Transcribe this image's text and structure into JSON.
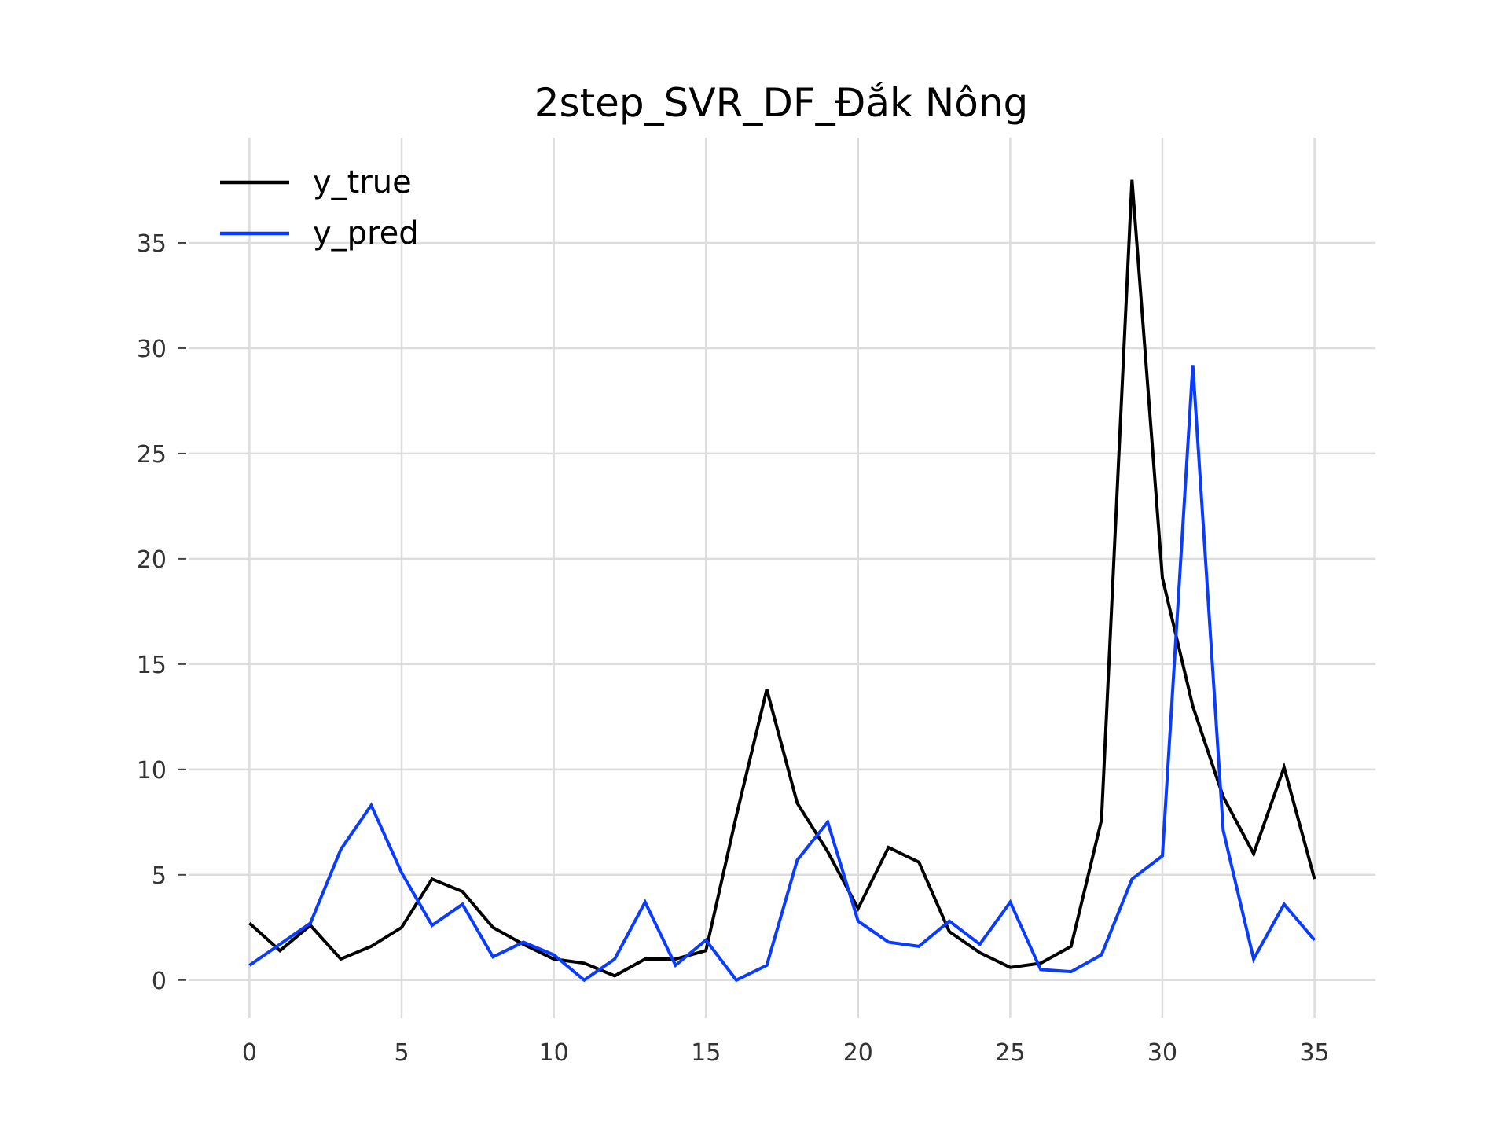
{
  "chart_data": {
    "type": "line",
    "title": "2step_SVR_DF_Đắk Nông",
    "xlabel": "",
    "ylabel": "",
    "x": [
      0,
      1,
      2,
      3,
      4,
      5,
      6,
      7,
      8,
      9,
      10,
      11,
      12,
      13,
      14,
      15,
      16,
      17,
      18,
      19,
      20,
      21,
      22,
      23,
      24,
      25,
      26,
      27,
      28,
      29,
      30,
      31,
      32,
      33,
      34,
      35
    ],
    "xlim": [
      -2,
      37
    ],
    "ylim": [
      -1.8,
      40
    ],
    "xticks": [
      0,
      5,
      10,
      15,
      20,
      25,
      30,
      35
    ],
    "yticks": [
      0,
      5,
      10,
      15,
      20,
      25,
      30,
      35
    ],
    "xtick_labels": [
      "0",
      "5",
      "10",
      "15",
      "20",
      "25",
      "30",
      "35"
    ],
    "ytick_labels": [
      "0",
      "5",
      "10",
      "15",
      "20",
      "25",
      "30",
      "35"
    ],
    "grid": true,
    "legend_position": "top-left",
    "series": [
      {
        "name": "y_true",
        "color": "#000000",
        "values": [
          2.7,
          1.4,
          2.6,
          1.0,
          1.6,
          2.5,
          4.8,
          4.2,
          2.5,
          1.7,
          1.0,
          0.8,
          0.2,
          1.0,
          1.0,
          1.4,
          7.8,
          13.8,
          8.4,
          6.1,
          3.4,
          6.3,
          5.6,
          2.3,
          1.3,
          0.6,
          0.8,
          1.6,
          7.6,
          38.0,
          19.1,
          13.0,
          8.7,
          6.0,
          10.1,
          4.8
        ]
      },
      {
        "name": "y_pred",
        "color": "#0a3cff",
        "values": [
          0.7,
          1.7,
          2.7,
          6.2,
          8.3,
          5.1,
          2.6,
          3.6,
          1.1,
          1.8,
          1.2,
          0.0,
          1.0,
          3.7,
          0.7,
          1.9,
          0.0,
          0.7,
          5.7,
          7.5,
          2.8,
          1.8,
          1.6,
          2.8,
          1.7,
          3.7,
          0.5,
          0.4,
          1.2,
          4.8,
          5.9,
          29.2,
          7.1,
          1.0,
          3.6,
          1.9
        ]
      }
    ]
  }
}
